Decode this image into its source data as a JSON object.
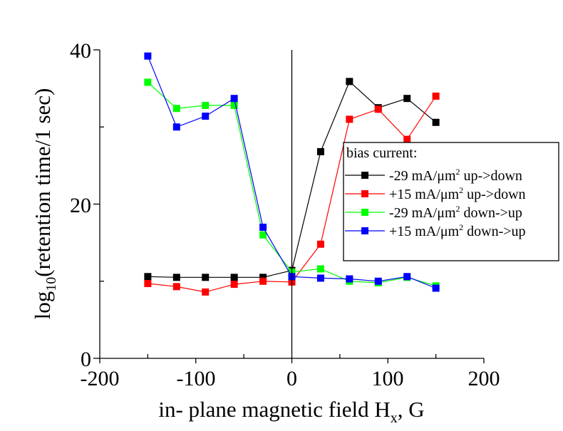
{
  "chart_data": {
    "type": "line",
    "title": "",
    "xlabel": "in- plane magnetic field H",
    "xlabel_sub": "x",
    "xlabel_suffix": ", G",
    "ylabel_prefix": "log",
    "ylabel_sub": "10",
    "ylabel_suffix": "(retention time/1 sec)",
    "xlim": [
      -200,
      200
    ],
    "ylim": [
      0,
      40
    ],
    "xticks": [
      -200,
      -100,
      0,
      100,
      200
    ],
    "xtick_labels": [
      "-200",
      "-100",
      "0",
      "100",
      "200"
    ],
    "yticks": [
      0,
      20,
      40
    ],
    "ytick_labels": [
      "0",
      "20",
      "40"
    ],
    "grid": false,
    "legend_title": "bias current:",
    "legend_position": "right",
    "x": [
      -150,
      -120,
      -90,
      -60,
      -30,
      0,
      30,
      60,
      90,
      120,
      150
    ],
    "series": [
      {
        "name": "-29 mA/μm",
        "sup": "2",
        "suffix": " up->down",
        "color": "#000000",
        "values": [
          10.6,
          10.5,
          10.5,
          10.5,
          10.5,
          11.4,
          26.8,
          35.9,
          32.5,
          33.7,
          30.6
        ]
      },
      {
        "name": "+15 mA/μm",
        "sup": "2",
        "suffix": " up->down",
        "color": "#ff0000",
        "values": [
          9.7,
          9.3,
          8.6,
          9.6,
          10.0,
          9.9,
          14.8,
          31.0,
          32.3,
          28.4,
          34.0
        ]
      },
      {
        "name": "-29 mA/μm",
        "sup": "2",
        "suffix": " down->up",
        "color": "#00ff00",
        "values": [
          35.8,
          32.4,
          32.8,
          32.8,
          16.0,
          11.2,
          11.6,
          10.0,
          9.8,
          10.5,
          9.4
        ]
      },
      {
        "name": "+15 mA/μm",
        "sup": "2",
        "suffix": " down->up",
        "color": "#0000ff",
        "values": [
          39.2,
          30.0,
          31.4,
          33.7,
          17.0,
          10.6,
          10.4,
          10.3,
          10.0,
          10.6,
          9.1
        ]
      }
    ]
  }
}
